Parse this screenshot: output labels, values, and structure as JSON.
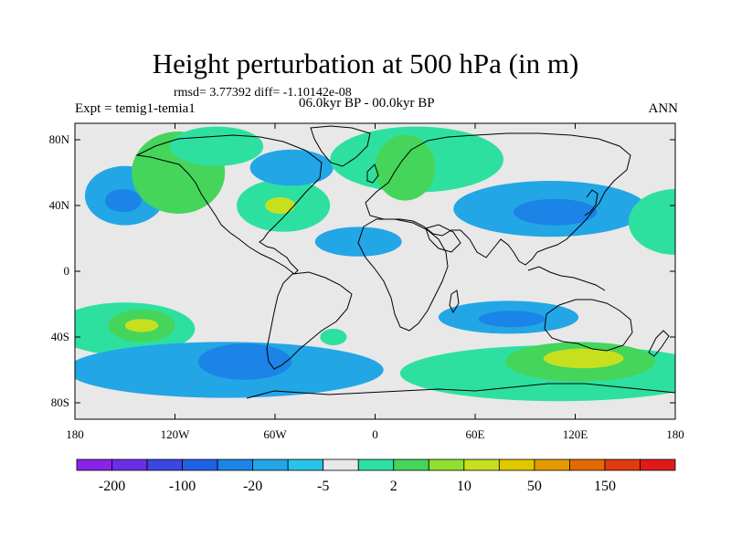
{
  "header": {
    "title": "Height perturbation at 500 hPa (in m)",
    "stats": "rmsd= 3.77392 diff= -1.10142e-08",
    "experiment": "Expt = temig1-temia1",
    "period": "06.0kyr BP - 00.0kyr BP",
    "season": "ANN"
  },
  "axes": {
    "lat_labels": [
      "80N",
      "40N",
      "0",
      "40S",
      "80S"
    ],
    "lon_labels": [
      "180",
      "120W",
      "60W",
      "0",
      "60E",
      "120E",
      "180"
    ],
    "lat_values": [
      80,
      40,
      0,
      -40,
      -80
    ],
    "lon_values": [
      -180,
      -120,
      -60,
      0,
      60,
      120,
      180
    ]
  },
  "colorbar": {
    "labels": [
      "-200",
      "-100",
      "-20",
      "-5",
      "2",
      "10",
      "50",
      "150"
    ],
    "colors": [
      "#8a23e8",
      "#6b2ee6",
      "#3c46e0",
      "#2060e6",
      "#1b84e6",
      "#22a6e6",
      "#28c4e8",
      "#e8e8e8",
      "#2ee0a0",
      "#44d55a",
      "#90e030",
      "#c6e020",
      "#e0c800",
      "#e29a00",
      "#e36a00",
      "#e23a10",
      "#e01a1a"
    ]
  },
  "map": {
    "background_color": "#e8e8e8",
    "anomaly_regions": [
      {
        "cls": "-5",
        "color": "#22a6e6",
        "lon": -150,
        "lat": 46,
        "rx": 24,
        "ry": 18
      },
      {
        "cls": "-20",
        "color": "#1b84e6",
        "lon": -151,
        "lat": 43,
        "rx": 11,
        "ry": 7
      },
      {
        "cls": "10",
        "color": "#44d55a",
        "lon": -118,
        "lat": 60,
        "rx": 28,
        "ry": 25
      },
      {
        "cls": "2",
        "color": "#2ee0a0",
        "lon": -95,
        "lat": 76,
        "rx": 28,
        "ry": 12
      },
      {
        "cls": "2",
        "color": "#2ee0a0",
        "lon": -55,
        "lat": 40,
        "rx": 28,
        "ry": 16
      },
      {
        "cls": "50",
        "color": "#c6e020",
        "lon": -57,
        "lat": 40,
        "rx": 9,
        "ry": 5
      },
      {
        "cls": "-5",
        "color": "#22a6e6",
        "lon": -50,
        "lat": 63,
        "rx": 25,
        "ry": 11
      },
      {
        "cls": "2",
        "color": "#2ee0a0",
        "lon": 25,
        "lat": 68,
        "rx": 52,
        "ry": 20
      },
      {
        "cls": "10",
        "color": "#44d55a",
        "lon": 18,
        "lat": 63,
        "rx": 18,
        "ry": 20
      },
      {
        "cls": "-5",
        "color": "#22a6e6",
        "lon": 105,
        "lat": 38,
        "rx": 58,
        "ry": 17
      },
      {
        "cls": "-20",
        "color": "#1b84e6",
        "lon": 108,
        "lat": 36,
        "rx": 25,
        "ry": 8
      },
      {
        "cls": "2",
        "color": "#2ee0a0",
        "lon": 180,
        "lat": 30,
        "rx": 28,
        "ry": 20
      },
      {
        "cls": "-5",
        "color": "#22a6e6",
        "lon": -10,
        "lat": 18,
        "rx": 26,
        "ry": 9
      },
      {
        "cls": "2",
        "color": "#2ee0a0",
        "lon": -150,
        "lat": -35,
        "rx": 42,
        "ry": 16
      },
      {
        "cls": "10",
        "color": "#44d55a",
        "lon": -140,
        "lat": -33,
        "rx": 20,
        "ry": 10
      },
      {
        "cls": "50",
        "color": "#c6e020",
        "lon": -140,
        "lat": -33,
        "rx": 10,
        "ry": 4
      },
      {
        "cls": "-5",
        "color": "#22a6e6",
        "lon": -90,
        "lat": -60,
        "rx": 95,
        "ry": 17
      },
      {
        "cls": "-20",
        "color": "#1b84e6",
        "lon": -78,
        "lat": -55,
        "rx": 28,
        "ry": 11
      },
      {
        "cls": "2",
        "color": "#2ee0a0",
        "lon": -25,
        "lat": -40,
        "rx": 8,
        "ry": 5
      },
      {
        "cls": "-5",
        "color": "#22a6e6",
        "lon": 80,
        "lat": -28,
        "rx": 42,
        "ry": 10
      },
      {
        "cls": "-20",
        "color": "#1b84e6",
        "lon": 82,
        "lat": -29,
        "rx": 20,
        "ry": 5
      },
      {
        "cls": "2",
        "color": "#2ee0a0",
        "lon": 110,
        "lat": -62,
        "rx": 95,
        "ry": 17
      },
      {
        "cls": "10",
        "color": "#44d55a",
        "lon": 123,
        "lat": -55,
        "rx": 45,
        "ry": 12
      },
      {
        "cls": "50",
        "color": "#c6e020",
        "lon": 125,
        "lat": -53,
        "rx": 24,
        "ry": 6
      }
    ]
  }
}
